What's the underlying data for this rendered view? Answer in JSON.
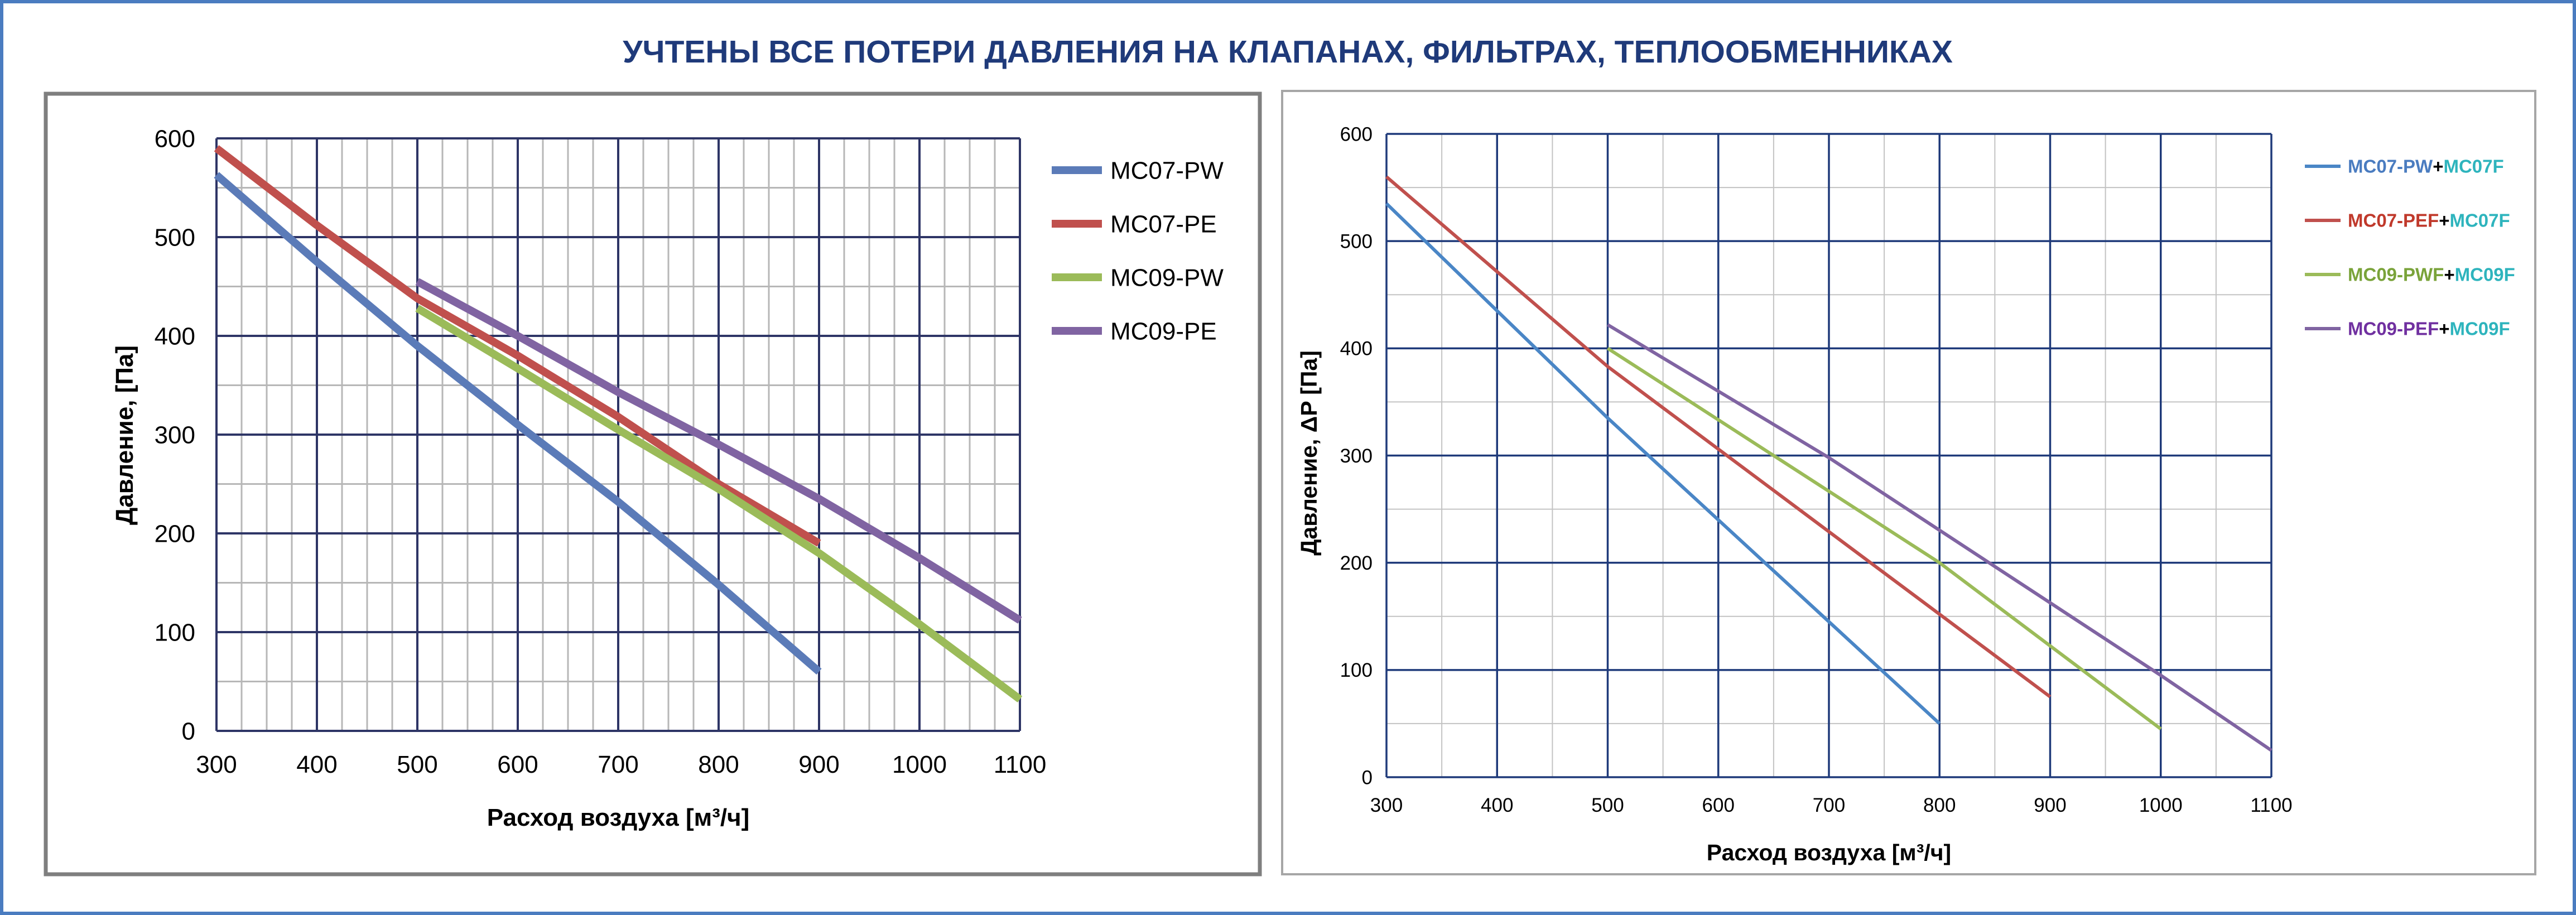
{
  "title": "УЧТЕНЫ ВСЕ ПОТЕРИ ДАВЛЕНИЯ НА КЛАПАНАХ, ФИЛЬТРАХ, ТЕПЛООБМЕННИКАХ",
  "colors": {
    "title": "#1f3a7a",
    "frame": "#4a7cc0",
    "cyan_label": "#2eb4bd"
  },
  "chart_data": [
    {
      "type": "line",
      "xlabel": "Расход воздуха [м³/ч]",
      "ylabel": "Давление, [Па]",
      "xlim": [
        300,
        1100
      ],
      "ylim": [
        0,
        600
      ],
      "x_ticks": [
        "300",
        "400",
        "500",
        "600",
        "700",
        "800",
        "900",
        "1000",
        "1100"
      ],
      "y_ticks": [
        "0",
        "100",
        "200",
        "300",
        "400",
        "500",
        "600"
      ],
      "grid": true,
      "legend_position": "right",
      "series": [
        {
          "name": "MC07-PW",
          "color": "#5b7bb8",
          "x": [
            300,
            400,
            500,
            600,
            700,
            800,
            900
          ],
          "y": [
            563,
            475,
            390,
            310,
            232,
            148,
            60
          ]
        },
        {
          "name": "MC07-PE",
          "color": "#c0504d",
          "x": [
            300,
            400,
            500,
            600,
            700,
            800,
            900
          ],
          "y": [
            590,
            512,
            438,
            380,
            318,
            250,
            190
          ]
        },
        {
          "name": "MC09-PW",
          "color": "#9bbb59",
          "x": [
            500,
            600,
            700,
            800,
            900,
            1000,
            1100
          ],
          "y": [
            428,
            367,
            305,
            245,
            180,
            108,
            32
          ]
        },
        {
          "name": "MC09-PE",
          "color": "#8064a2",
          "x": [
            500,
            600,
            700,
            800,
            900,
            1000,
            1100
          ],
          "y": [
            455,
            400,
            343,
            290,
            235,
            175,
            112
          ]
        }
      ]
    },
    {
      "type": "line",
      "xlabel": "Расход воздуха [м³/ч]",
      "ylabel": "Давление, ΔP [Па]",
      "xlim": [
        300,
        1100
      ],
      "ylim": [
        0,
        600
      ],
      "x_ticks": [
        "300",
        "400",
        "500",
        "600",
        "700",
        "800",
        "900",
        "1000",
        "1100"
      ],
      "y_ticks": [
        "0",
        "100",
        "200",
        "300",
        "400",
        "500",
        "600"
      ],
      "grid": true,
      "legend_position": "right",
      "series": [
        {
          "name_parts": [
            {
              "text": "MC07-PW",
              "color": "#4a7cc0"
            },
            {
              "text": "+",
              "color": "#000000"
            },
            {
              "text": "MC07F",
              "color": "#2eb4bd"
            }
          ],
          "color": "#4a86c6",
          "x": [
            300,
            500,
            800
          ],
          "y": [
            535,
            335,
            50
          ]
        },
        {
          "name_parts": [
            {
              "text": "MC07-PEF",
              "color": "#c0392b"
            },
            {
              "text": "+",
              "color": "#000000"
            },
            {
              "text": "MC07F",
              "color": "#2eb4bd"
            }
          ],
          "color": "#c0504d",
          "x": [
            300,
            500,
            900
          ],
          "y": [
            560,
            383,
            75
          ]
        },
        {
          "name_parts": [
            {
              "text": "MC09-PWF",
              "color": "#7aa33a"
            },
            {
              "text": "+",
              "color": "#000000"
            },
            {
              "text": "MC09F",
              "color": "#2eb4bd"
            }
          ],
          "color": "#9bbb59",
          "x": [
            500,
            800,
            1000
          ],
          "y": [
            400,
            200,
            45
          ]
        },
        {
          "name_parts": [
            {
              "text": "MC09-PEF",
              "color": "#7030a0"
            },
            {
              "text": "+",
              "color": "#000000"
            },
            {
              "text": "MC09F",
              "color": "#2eb4bd"
            }
          ],
          "color": "#8064a2",
          "x": [
            500,
            700,
            1000,
            1100
          ],
          "y": [
            422,
            298,
            95,
            25
          ]
        }
      ]
    }
  ]
}
